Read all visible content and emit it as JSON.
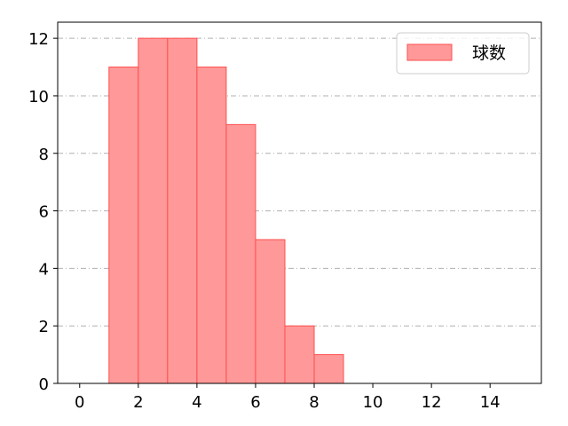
{
  "chart_data": {
    "type": "bar",
    "histogram": true,
    "bins": [
      [
        1,
        2
      ],
      [
        2,
        3
      ],
      [
        3,
        4
      ],
      [
        4,
        5
      ],
      [
        5,
        6
      ],
      [
        6,
        7
      ],
      [
        7,
        8
      ],
      [
        8,
        9
      ]
    ],
    "values": [
      11,
      12,
      12,
      11,
      9,
      5,
      2,
      1
    ],
    "series": [
      {
        "name": "球数",
        "values": [
          11,
          12,
          12,
          11,
          9,
          5,
          2,
          1
        ]
      }
    ],
    "xlim": [
      -0.75,
      15.75
    ],
    "ylim": [
      0,
      12.56
    ],
    "xticks": [
      0,
      2,
      4,
      6,
      8,
      10,
      12,
      14
    ],
    "yticks": [
      0,
      2,
      4,
      6,
      8,
      10,
      12
    ],
    "grid": {
      "y": true,
      "x": false,
      "style": "dash-dot"
    },
    "legend": "top-right",
    "colors": {
      "bar_fill": "#ff9999",
      "bar_edge": "#ff4d4d",
      "grid": "#b0b0b0"
    }
  }
}
